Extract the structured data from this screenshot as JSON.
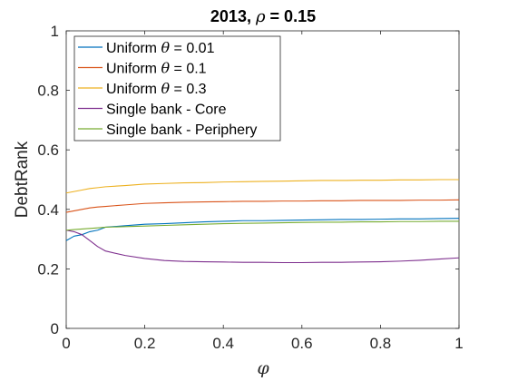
{
  "chart_data": {
    "type": "line",
    "title_prefix": "2013, ",
    "title_symbol": "ρ",
    "title_suffix": " = 0.15",
    "xlabel": "φ",
    "ylabel": "DebtRank",
    "xlim": [
      0,
      1
    ],
    "ylim": [
      0,
      1
    ],
    "xticks": [
      0,
      0.2,
      0.4,
      0.6,
      0.8,
      1
    ],
    "xtick_labels": [
      "0",
      "0.2",
      "0.4",
      "0.6",
      "0.8",
      "1"
    ],
    "yticks": [
      0,
      0.2,
      0.4,
      0.6,
      0.8,
      1
    ],
    "ytick_labels": [
      "0",
      "0.2",
      "0.4",
      "0.6",
      "0.8",
      "1"
    ],
    "grid": false,
    "legend_placement": "top-left",
    "x": [
      0,
      0.02,
      0.04,
      0.06,
      0.08,
      0.1,
      0.15,
      0.2,
      0.25,
      0.3,
      0.35,
      0.4,
      0.45,
      0.5,
      0.55,
      0.6,
      0.65,
      0.7,
      0.75,
      0.8,
      0.85,
      0.9,
      0.95,
      1
    ],
    "series": [
      {
        "legend_prefix": "Uniform ",
        "legend_symbol": "θ",
        "legend_suffix": " = 0.01",
        "color": "#0072BD",
        "values": [
          0.295,
          0.31,
          0.315,
          0.325,
          0.33,
          0.34,
          0.345,
          0.35,
          0.352,
          0.355,
          0.358,
          0.36,
          0.362,
          0.362,
          0.363,
          0.364,
          0.365,
          0.366,
          0.366,
          0.367,
          0.368,
          0.368,
          0.369,
          0.37
        ]
      },
      {
        "legend_prefix": "Uniform ",
        "legend_symbol": "θ",
        "legend_suffix": " = 0.1",
        "color": "#D95319",
        "values": [
          0.39,
          0.395,
          0.4,
          0.405,
          0.408,
          0.41,
          0.415,
          0.42,
          0.422,
          0.424,
          0.425,
          0.426,
          0.427,
          0.427,
          0.428,
          0.428,
          0.429,
          0.429,
          0.43,
          0.43,
          0.43,
          0.431,
          0.431,
          0.432
        ]
      },
      {
        "legend_prefix": "Uniform ",
        "legend_symbol": "θ",
        "legend_suffix": " = 0.3",
        "color": "#EDB120",
        "values": [
          0.455,
          0.46,
          0.465,
          0.47,
          0.473,
          0.476,
          0.48,
          0.485,
          0.487,
          0.489,
          0.49,
          0.492,
          0.493,
          0.494,
          0.495,
          0.496,
          0.497,
          0.497,
          0.498,
          0.498,
          0.499,
          0.499,
          0.5,
          0.5
        ]
      },
      {
        "legend_prefix": "Single bank - Core",
        "legend_symbol": "",
        "legend_suffix": "",
        "color": "#7E2F8E",
        "values": [
          0.33,
          0.325,
          0.315,
          0.295,
          0.275,
          0.26,
          0.245,
          0.235,
          0.228,
          0.225,
          0.224,
          0.223,
          0.222,
          0.222,
          0.221,
          0.221,
          0.222,
          0.222,
          0.223,
          0.224,
          0.226,
          0.229,
          0.233,
          0.237
        ]
      },
      {
        "legend_prefix": "Single bank - Periphery",
        "legend_symbol": "",
        "legend_suffix": "",
        "color": "#77AC30",
        "values": [
          0.33,
          0.332,
          0.334,
          0.336,
          0.338,
          0.34,
          0.342,
          0.344,
          0.346,
          0.348,
          0.35,
          0.352,
          0.353,
          0.354,
          0.355,
          0.356,
          0.357,
          0.357,
          0.358,
          0.358,
          0.359,
          0.359,
          0.36,
          0.36
        ]
      }
    ]
  }
}
